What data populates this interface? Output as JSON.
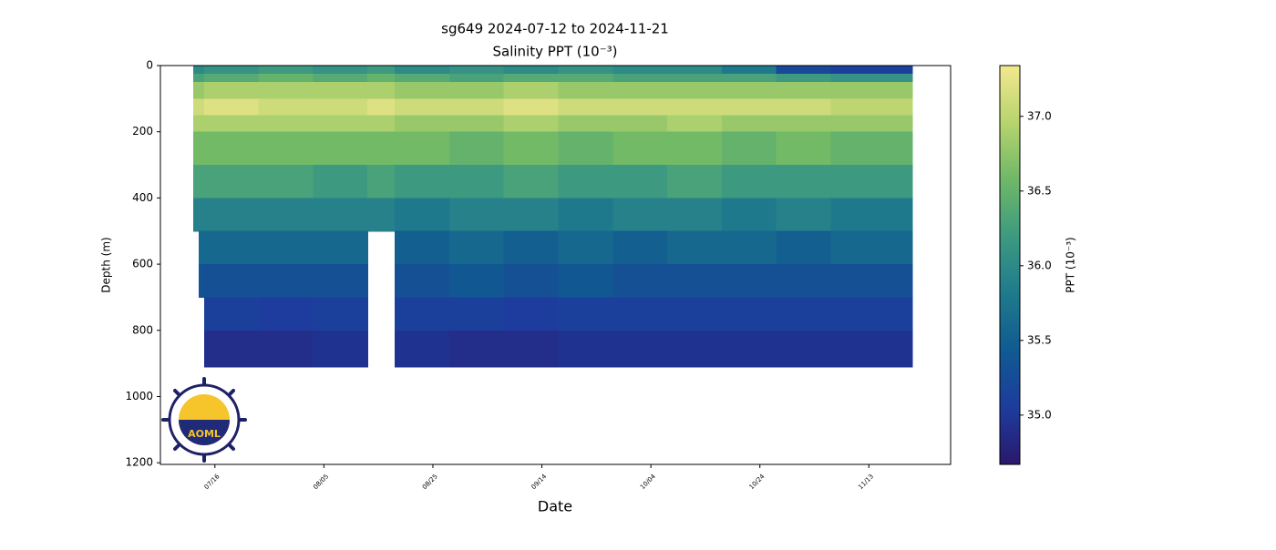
{
  "chart_data": {
    "type": "heatmap",
    "title": "sg649 2024-07-12 to 2024-11-21",
    "subtitle": "Salinity PPT (10⁻³)",
    "x_label": "Date",
    "y_label": "Depth (m)",
    "colorbar_label": "PPT (10⁻³)",
    "x_edges": [
      "07/12",
      "07/13",
      "07/14",
      "07/24",
      "08/03",
      "08/13",
      "08/18",
      "08/28",
      "09/07",
      "09/17",
      "09/27",
      "10/07",
      "10/17",
      "10/27",
      "11/06",
      "11/21"
    ],
    "y_edges": [
      0,
      25,
      50,
      100,
      150,
      200,
      300,
      400,
      500,
      600,
      700,
      800,
      910
    ],
    "values": [
      [
        36.0,
        36.0,
        36.1,
        36.2,
        36.1,
        36.2,
        36.0,
        36.1,
        36.0,
        36.1,
        36.0,
        36.0,
        35.8,
        35.2,
        35.1
      ],
      [
        36.3,
        36.3,
        36.4,
        36.5,
        36.4,
        36.5,
        36.4,
        36.3,
        36.4,
        36.4,
        36.3,
        36.3,
        36.3,
        36.2,
        36.1
      ],
      [
        36.8,
        36.8,
        36.9,
        36.9,
        36.9,
        36.9,
        36.8,
        36.8,
        36.9,
        36.8,
        36.8,
        36.8,
        36.8,
        36.8,
        36.8
      ],
      [
        37.1,
        37.1,
        37.2,
        37.1,
        37.1,
        37.2,
        37.1,
        37.1,
        37.2,
        37.1,
        37.1,
        37.1,
        37.1,
        37.1,
        37.0
      ],
      [
        36.9,
        36.9,
        36.9,
        36.9,
        36.9,
        36.9,
        36.8,
        36.8,
        36.9,
        36.8,
        36.8,
        36.9,
        36.8,
        36.8,
        36.8
      ],
      [
        36.6,
        36.6,
        36.6,
        36.6,
        36.6,
        36.6,
        36.6,
        36.5,
        36.6,
        36.5,
        36.6,
        36.6,
        36.5,
        36.6,
        36.5
      ],
      [
        36.3,
        36.3,
        36.3,
        36.3,
        36.2,
        36.3,
        36.2,
        36.2,
        36.3,
        36.2,
        36.2,
        36.3,
        36.2,
        36.2,
        36.2
      ],
      [
        35.9,
        35.9,
        35.9,
        35.9,
        35.9,
        35.9,
        35.8,
        35.9,
        35.9,
        35.8,
        35.9,
        35.9,
        35.8,
        35.9,
        35.8
      ],
      [
        null,
        35.6,
        35.6,
        35.6,
        35.6,
        null,
        35.5,
        35.6,
        35.5,
        35.6,
        35.5,
        35.6,
        35.6,
        35.5,
        35.6
      ],
      [
        null,
        35.35,
        35.3,
        35.3,
        35.3,
        null,
        35.3,
        35.4,
        35.3,
        35.4,
        35.3,
        35.3,
        35.3,
        35.3,
        35.3
      ],
      [
        null,
        null,
        35.1,
        35.05,
        35.1,
        null,
        35.1,
        35.1,
        35.05,
        35.1,
        35.1,
        35.1,
        35.1,
        35.1,
        35.1
      ],
      [
        null,
        null,
        34.9,
        34.9,
        34.95,
        null,
        34.95,
        34.9,
        34.9,
        34.95,
        34.95,
        34.95,
        34.95,
        34.95,
        34.95
      ]
    ],
    "xlim": [
      "07/06",
      "11/28"
    ],
    "xticks": [
      "07/16",
      "08/05",
      "08/25",
      "09/14",
      "10/04",
      "10/24",
      "11/13"
    ],
    "ylim": [
      0,
      1205
    ],
    "yticks": [
      0,
      200,
      400,
      600,
      800,
      1000,
      1200
    ],
    "clim": [
      34.67,
      37.34
    ],
    "cticks": [
      {
        "value": 35,
        "label": "35.0"
      },
      35.5,
      {
        "value": 36,
        "label": "36.0"
      },
      36.5,
      {
        "value": 37,
        "label": "37.0"
      }
    ],
    "colormap": [
      "#2a186c",
      "#1d3c9d",
      "#105a91",
      "#1f7a8c",
      "#3c9a81",
      "#6fb867",
      "#b7d46e",
      "#f3e88f"
    ],
    "logo_text": "AOML"
  }
}
